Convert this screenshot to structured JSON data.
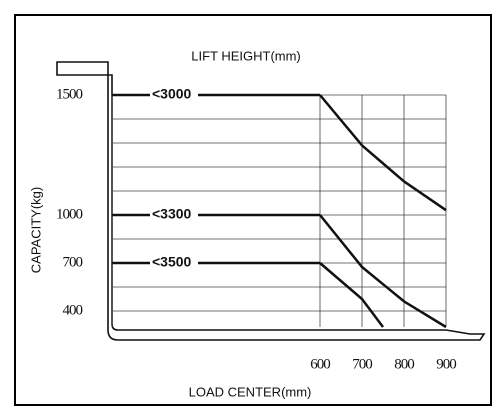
{
  "chart_data": {
    "type": "line",
    "title": "LIFT HEIGHT(mm)",
    "x_label": "LOAD CENTER(mm)",
    "y_label": "CAPACITY(kg)",
    "xlim": [
      600,
      900
    ],
    "xticks": [
      600,
      700,
      800,
      900
    ],
    "ylim": [
      300,
      1500
    ],
    "yticks": [
      1500,
      1000,
      700,
      400
    ],
    "grid": true,
    "series": [
      {
        "name": "<3000",
        "color": "#111111",
        "x": [
          600,
          700,
          800,
          900
        ],
        "values": [
          1500,
          1290,
          1140,
          1020
        ]
      },
      {
        "name": "<3300",
        "color": "#111111",
        "x": [
          600,
          700,
          800,
          900
        ],
        "values": [
          1000,
          675,
          460,
          300
        ]
      },
      {
        "name": "<3500",
        "color": "#111111",
        "x": [
          600,
          700,
          750
        ],
        "values": [
          700,
          475,
          300
        ]
      }
    ]
  }
}
